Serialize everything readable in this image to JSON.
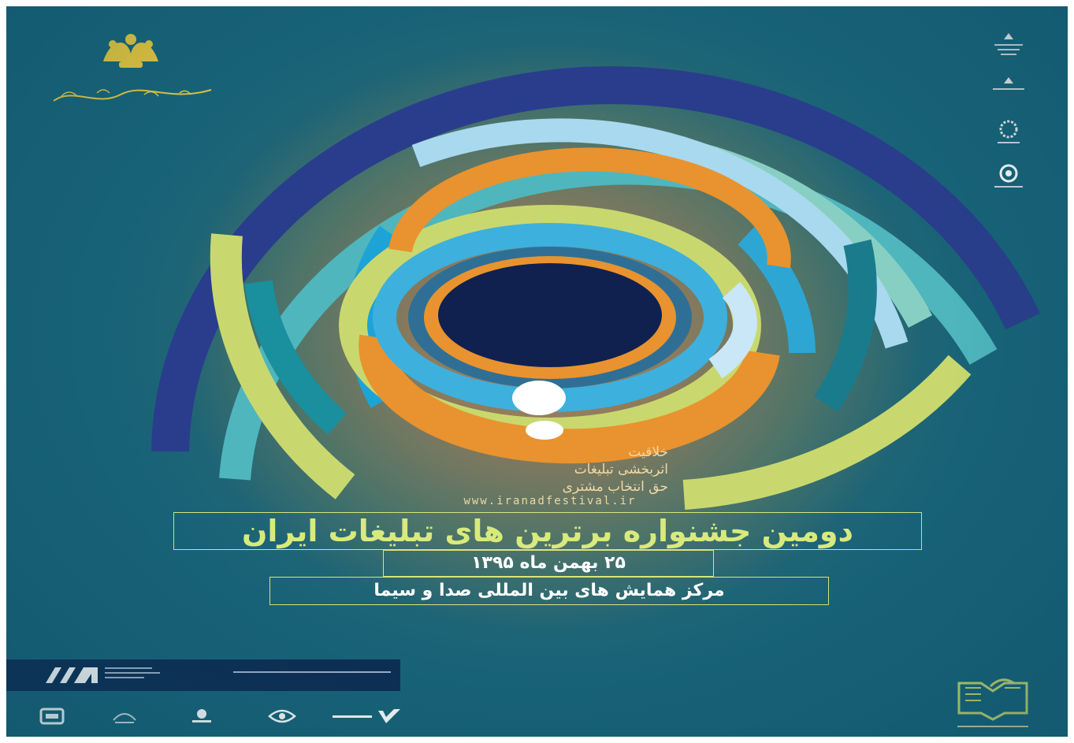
{
  "festival": {
    "slogan_lines": [
      "خلاقیت",
      "اثربخشی تبلیغات",
      "حق انتخاب مشتری"
    ],
    "website": "www.iranadfestival.ir",
    "title": "دومین جشنواره برترین های تبلیغات ایران",
    "date": "۲۵ بهمن ماه ۱۳۹۵",
    "venue": "مرکز همایش های بین المللی صدا و سیما"
  },
  "colors": {
    "background": "#186378",
    "title": "#d9ea7c",
    "frame": "#d8e67a",
    "slogan": "#f3d8a6"
  },
  "icons": {
    "top_left": "festival-logo",
    "top_right": [
      "government-emblem",
      "government-emblem",
      "ornament-emblem",
      "circular-seal"
    ],
    "bottom_left": [
      "iaa-logo",
      "sponsor-logo",
      "sponsor-logo",
      "sponsor-logo",
      "eye-logo",
      "brand-logo"
    ],
    "bottom_right": "book-organization-logo"
  }
}
